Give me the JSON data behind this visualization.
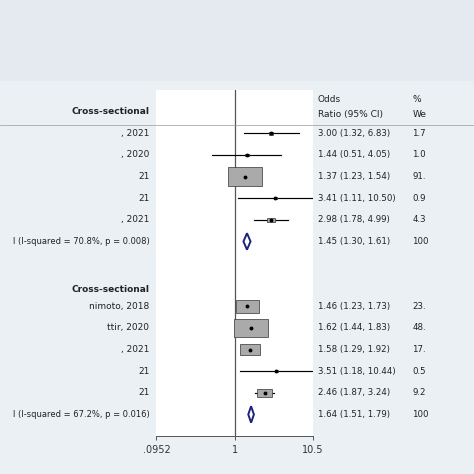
{
  "bg_top": "#e4eaf0",
  "bg_bottom": "#eaf0f4",
  "plot_bg": "#ffffff",
  "studies1": [
    {
      "label": ", 2021",
      "or": 3.0,
      "lo": 1.32,
      "hi": 6.83,
      "weight": 1.7,
      "text_or": "3.00 (1.32, 6.83)",
      "text_w": "1.7"
    },
    {
      "label": ", 2020",
      "or": 1.44,
      "lo": 0.51,
      "hi": 4.05,
      "weight": 1.0,
      "text_or": "1.44 (0.51, 4.05)",
      "text_w": "1.0"
    },
    {
      "label": "21",
      "or": 1.37,
      "lo": 1.23,
      "hi": 1.54,
      "weight": 91.0,
      "text_or": "1.37 (1.23, 1.54)",
      "text_w": "91."
    },
    {
      "label": "21",
      "or": 3.41,
      "lo": 1.11,
      "hi": 10.5,
      "weight": 0.9,
      "text_or": "3.41 (1.11, 10.50)",
      "text_w": "0.9"
    },
    {
      "label": ", 2021",
      "or": 2.98,
      "lo": 1.78,
      "hi": 4.99,
      "weight": 4.3,
      "text_or": "2.98 (1.78, 4.99)",
      "text_w": "4.3"
    }
  ],
  "summary1": {
    "or": 1.45,
    "lo": 1.3,
    "hi": 1.61,
    "label": "l (I-squared = 70.8%, p = 0.008)",
    "text_or": "1.45 (1.30, 1.61)",
    "text_w": "100"
  },
  "studies2": [
    {
      "label": "nimoto, 2018",
      "or": 1.46,
      "lo": 1.23,
      "hi": 1.73,
      "weight": 23.0,
      "text_or": "1.46 (1.23, 1.73)",
      "text_w": "23."
    },
    {
      "label": "ttir, 2020",
      "or": 1.62,
      "lo": 1.44,
      "hi": 1.83,
      "weight": 48.0,
      "text_or": "1.62 (1.44, 1.83)",
      "text_w": "48."
    },
    {
      "label": ", 2021",
      "or": 1.58,
      "lo": 1.29,
      "hi": 1.92,
      "weight": 17.0,
      "text_or": "1.58 (1.29, 1.92)",
      "text_w": "17."
    },
    {
      "label": "21",
      "or": 3.51,
      "lo": 1.18,
      "hi": 10.44,
      "weight": 0.5,
      "text_or": "3.51 (1.18, 10.44)",
      "text_w": "0.5"
    },
    {
      "label": "21",
      "or": 2.46,
      "lo": 1.87,
      "hi": 3.24,
      "weight": 9.2,
      "text_or": "2.46 (1.87, 3.24)",
      "text_w": "9.2"
    }
  ],
  "summary2": {
    "or": 1.64,
    "lo": 1.51,
    "hi": 1.79,
    "label": "l (I-squared = 67.2%, p = 0.016)",
    "text_or": "1.64 (1.51, 1.79)",
    "text_w": "100"
  },
  "xmin": 0.0952,
  "xmax": 10.5,
  "xtick_vals": [
    0.0952,
    1.0,
    10.5
  ],
  "xtick_labels": [
    ".0952",
    "1",
    "10.5"
  ],
  "section1_label": "Cross-sectional",
  "section2_label": "Cross-sectional"
}
